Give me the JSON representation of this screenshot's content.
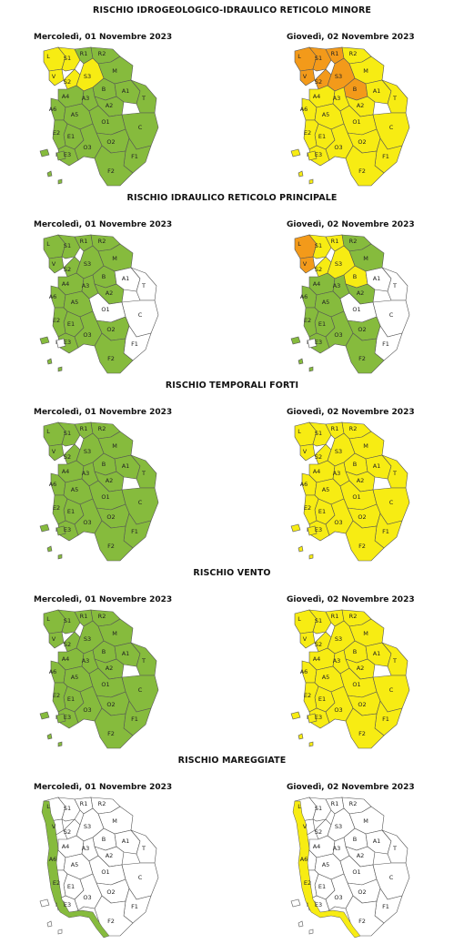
{
  "colors": {
    "green": "#86bb3d",
    "yellow": "#f7ec13",
    "orange": "#f39a1a",
    "white": "#ffffff",
    "border": "#555555"
  },
  "zone_labels": [
    "L",
    "V",
    "S1",
    "S2",
    "S3",
    "R1",
    "R2",
    "M",
    "B",
    "A4",
    "A3",
    "A2",
    "A1",
    "A5",
    "A6",
    "T",
    "E1",
    "E2",
    "E3",
    "O1",
    "O2",
    "O3",
    "C",
    "F1",
    "F2",
    "I"
  ],
  "sections": [
    {
      "title": "RISCHIO IDROGEOLOGICO-IDRAULICO RETICOLO MINORE",
      "day1": {
        "label": "Mercoledì, 01 Novembre 2023",
        "base": "green",
        "overrides": {
          "L": "yellow",
          "V": "yellow",
          "S1": "yellow",
          "S2": "yellow",
          "S3": "yellow"
        }
      },
      "day2": {
        "label": "Giovedì, 02 Novembre 2023",
        "base": "yellow",
        "overrides": {
          "L": "orange",
          "V": "orange",
          "S1": "orange",
          "S2": "orange",
          "S3": "orange",
          "R1": "orange",
          "B": "orange"
        }
      }
    },
    {
      "title": "RISCHIO IDRAULICO RETICOLO PRINCIPALE",
      "day1": {
        "label": "Mercoledì, 01 Novembre 2023",
        "base": "green",
        "overrides": {
          "A1": "white",
          "T": "white",
          "C": "white",
          "O1": "white",
          "F1": "white",
          "I": "white"
        }
      },
      "day2": {
        "label": "Giovedì, 02 Novembre 2023",
        "base": "green",
        "overrides": {
          "L": "orange",
          "V": "orange",
          "S1": "yellow",
          "S2": "yellow",
          "S3": "yellow",
          "R1": "yellow",
          "B": "yellow",
          "A1": "white",
          "T": "white",
          "C": "white",
          "O1": "white",
          "F1": "white",
          "I": "white"
        }
      }
    },
    {
      "title": "RISCHIO TEMPORALI FORTI",
      "day1": {
        "label": "Mercoledì, 01 Novembre 2023",
        "base": "green",
        "overrides": {}
      },
      "day2": {
        "label": "Giovedì, 02 Novembre 2023",
        "base": "yellow",
        "overrides": {}
      }
    },
    {
      "title": "RISCHIO VENTO",
      "day1": {
        "label": "Mercoledì, 01 Novembre 2023",
        "base": "green",
        "overrides": {}
      },
      "day2": {
        "label": "Giovedì, 02 Novembre 2023",
        "base": "yellow",
        "overrides": {}
      }
    },
    {
      "title": "RISCHIO MAREGGIATE",
      "day1": {
        "label": "Mercoledì, 01 Novembre 2023",
        "base": "white",
        "overrides": {
          "coast": "green"
        }
      },
      "day2": {
        "label": "Giovedì, 02 Novembre 2023",
        "base": "white",
        "overrides": {
          "coast": "yellow"
        }
      }
    }
  ]
}
